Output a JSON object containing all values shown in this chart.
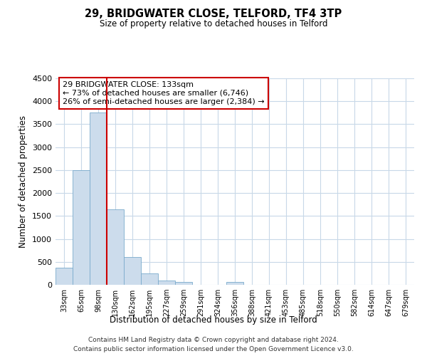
{
  "title": "29, BRIDGWATER CLOSE, TELFORD, TF4 3TP",
  "subtitle": "Size of property relative to detached houses in Telford",
  "xlabel": "Distribution of detached houses by size in Telford",
  "ylabel": "Number of detached properties",
  "bar_labels": [
    "33sqm",
    "65sqm",
    "98sqm",
    "130sqm",
    "162sqm",
    "195sqm",
    "227sqm",
    "259sqm",
    "291sqm",
    "324sqm",
    "356sqm",
    "388sqm",
    "421sqm",
    "453sqm",
    "485sqm",
    "518sqm",
    "550sqm",
    "582sqm",
    "614sqm",
    "647sqm",
    "679sqm"
  ],
  "bar_values": [
    380,
    2500,
    3750,
    1650,
    600,
    245,
    90,
    55,
    0,
    0,
    55,
    0,
    0,
    0,
    0,
    0,
    0,
    0,
    0,
    0,
    0
  ],
  "bar_color": "#ccdcec",
  "bar_edge_color": "#7aabcc",
  "highlight_line_index": 3,
  "highlight_line_color": "#cc0000",
  "ylim": [
    0,
    4500
  ],
  "yticks": [
    0,
    500,
    1000,
    1500,
    2000,
    2500,
    3000,
    3500,
    4000,
    4500
  ],
  "annotation_title": "29 BRIDGWATER CLOSE: 133sqm",
  "annotation_line1": "← 73% of detached houses are smaller (6,746)",
  "annotation_line2": "26% of semi-detached houses are larger (2,384) →",
  "footer_line1": "Contains HM Land Registry data © Crown copyright and database right 2024.",
  "footer_line2": "Contains public sector information licensed under the Open Government Licence v3.0.",
  "background_color": "#ffffff",
  "grid_color": "#c8d8e8"
}
